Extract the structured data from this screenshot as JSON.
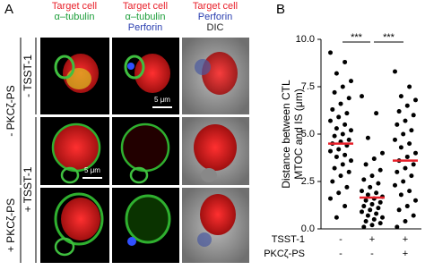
{
  "panel_a": {
    "label": "A",
    "columns": [
      {
        "lines": [
          {
            "text": "Target cell",
            "color": "#e8202a"
          },
          {
            "text": "α–tubulin",
            "color": "#1d9e3a"
          }
        ]
      },
      {
        "lines": [
          {
            "text": "Target cell",
            "color": "#e8202a"
          },
          {
            "text": "α–tubulin",
            "color": "#1d9e3a"
          },
          {
            "text": "Perforin",
            "color": "#2b3fb0"
          }
        ]
      },
      {
        "lines": [
          {
            "text": "Target cell",
            "color": "#e8202a"
          },
          {
            "text": "Perforin",
            "color": "#2b3fb0"
          },
          {
            "text": "DIC",
            "color": "#222222"
          }
        ]
      }
    ],
    "outer_labels": [
      "- PKCζ-PS",
      "+ PKCζ-PS"
    ],
    "inner_labels": [
      "- TSST-1",
      "+ TSST-1"
    ],
    "scale_bar": "5 μm"
  },
  "chart_data": {
    "type": "scatter",
    "label": "B",
    "y_label_lines": [
      "Distance between CTL",
      "MTOC and IS (μm)"
    ],
    "ylim": [
      0,
      10
    ],
    "yticks": [
      {
        "value": 0,
        "label": "0.0"
      },
      {
        "value": 2.5,
        "label": "2.5"
      },
      {
        "value": 5,
        "label": "5.0"
      },
      {
        "value": 7.5,
        "label": "7.5"
      },
      {
        "value": 10,
        "label": "10.0"
      }
    ],
    "series": [
      {
        "color": "#000000",
        "values": [
          9.3,
          8.8,
          8.2,
          7.8,
          7.5,
          7.2,
          6.9,
          6.6,
          6.3,
          6.1,
          5.9,
          5.7,
          5.5,
          5.3,
          5.2,
          5.0,
          4.9,
          4.7,
          4.6,
          4.5,
          4.4,
          4.2,
          4.1,
          3.9,
          3.8,
          3.6,
          3.4,
          3.2,
          3.0,
          2.8,
          2.5,
          2.2,
          1.9,
          1.6,
          1.2,
          0.6
        ]
      },
      {
        "color": "#000000",
        "values": [
          7.0,
          6.1,
          4.8,
          4.0,
          3.7,
          3.4,
          3.1,
          2.8,
          2.6,
          2.4,
          2.2,
          2.0,
          1.9,
          1.8,
          1.7,
          1.6,
          1.5,
          1.4,
          1.3,
          1.2,
          1.1,
          1.0,
          0.9,
          0.8,
          0.7,
          0.6,
          0.5,
          0.4,
          0.3,
          0.2,
          0.1
        ]
      },
      {
        "color": "#000000",
        "values": [
          8.3,
          7.5,
          7.0,
          6.8,
          6.5,
          6.2,
          6.0,
          5.7,
          5.5,
          5.2,
          5.0,
          4.7,
          4.5,
          4.3,
          4.0,
          3.8,
          3.6,
          3.4,
          3.2,
          3.0,
          2.8,
          2.5,
          2.3,
          2.0,
          1.8,
          1.5,
          1.2,
          1.0,
          0.7,
          0.4,
          0.1
        ]
      }
    ],
    "means": [
      4.5,
      1.65,
      3.6
    ],
    "mean_color": "#e8202a",
    "significance": [
      "***",
      "***"
    ],
    "conditions": [
      {
        "label": "TSST-1",
        "values": [
          "-",
          "+",
          "+"
        ]
      },
      {
        "label": "PKCζ-PS",
        "values": [
          "-",
          "-",
          "+"
        ]
      }
    ]
  }
}
